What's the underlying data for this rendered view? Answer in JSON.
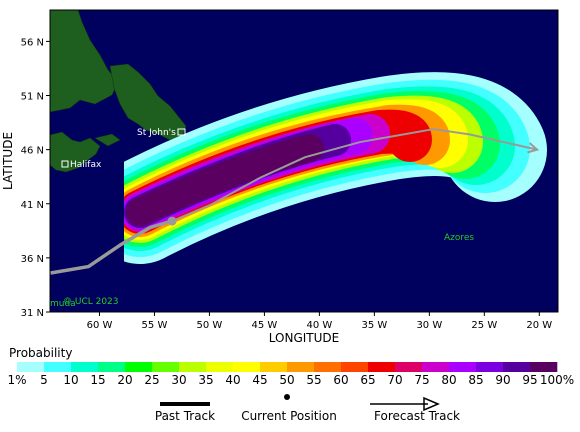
{
  "map": {
    "xlim": [
      -64.5,
      -18.3
    ],
    "ylim": [
      31,
      58.9
    ],
    "xticks": [
      {
        "value": -60,
        "label": "60 W"
      },
      {
        "value": -55,
        "label": "55 W"
      },
      {
        "value": -50,
        "label": "50 W"
      },
      {
        "value": -45,
        "label": "45 W"
      },
      {
        "value": -40,
        "label": "40 W"
      },
      {
        "value": -35,
        "label": "35 W"
      },
      {
        "value": -30,
        "label": "30 W"
      },
      {
        "value": -25,
        "label": "25 W"
      },
      {
        "value": -20,
        "label": "20 W"
      }
    ],
    "yticks": [
      {
        "value": 31,
        "label": "31 N"
      },
      {
        "value": 36,
        "label": "36 N"
      },
      {
        "value": 41,
        "label": "41 N"
      },
      {
        "value": 46,
        "label": "46 N"
      },
      {
        "value": 51,
        "label": "51 N"
      },
      {
        "value": 56,
        "label": "56 N"
      }
    ],
    "xlabel": "LONGITUDE",
    "ylabel": "LATITUDE",
    "places": [
      "St John's",
      "Halifax",
      "Azores",
      "muda",
      "© UCL 2023"
    ],
    "past_track": {
      "lon": [
        -64.45,
        -61.0,
        -58.1,
        -55.4,
        -53.4
      ],
      "lat": [
        34.6,
        35.2,
        37.2,
        38.8,
        39.4
      ]
    },
    "current_position": {
      "lon": -53.4,
      "lat": 39.4
    },
    "forecast_track": {
      "lon": [
        -53.4,
        -49.9,
        -45.4,
        -41.3,
        -36.3,
        -29.6,
        -26.3,
        -20.2
      ],
      "lat": [
        39.4,
        40.9,
        43.4,
        45.3,
        46.7,
        47.9,
        47.4,
        46.0
      ]
    }
  },
  "legend": {
    "title": "Probability",
    "labels": [
      "1%",
      "5",
      "10",
      "15",
      "20",
      "25",
      "30",
      "35",
      "40",
      "45",
      "50",
      "55",
      "60",
      "65",
      "70",
      "75",
      "80",
      "85",
      "90",
      "95",
      "100%"
    ],
    "colors": [
      "#a6ffff",
      "#44ffff",
      "#00ffcc",
      "#00ff88",
      "#00ff00",
      "#66ff00",
      "#bbff00",
      "#eeff00",
      "#ffff00",
      "#ffcc00",
      "#ff9900",
      "#ff7000",
      "#ff4400",
      "#ee0000",
      "#dd0066",
      "#cc00cc",
      "#aa00ff",
      "#7a00e0",
      "#55009e",
      "#5a0060"
    ],
    "items": [
      "Past Track",
      "Current Position",
      "Forecast Track"
    ]
  }
}
